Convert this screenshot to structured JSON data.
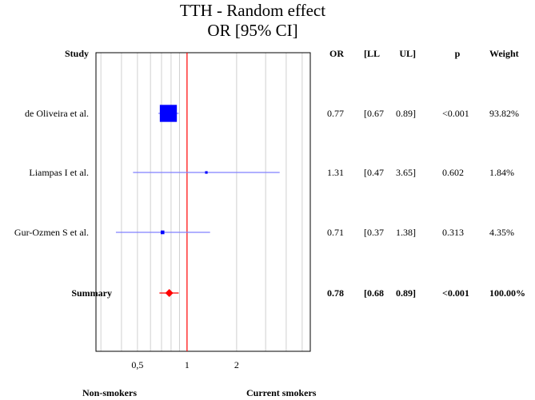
{
  "chart_data": {
    "type": "forest",
    "title": "TTH - Random effect",
    "subtitle": "OR [95% CI]",
    "columns": {
      "study": "Study",
      "or": "OR",
      "ll": "[LL",
      "ul": "UL]",
      "p": "p",
      "weight": "Weight"
    },
    "studies": [
      {
        "name": "de Oliveira et al.",
        "or": 0.77,
        "ll": 0.67,
        "ul": 0.89,
        "or_label": "0.77",
        "ll_label": "[0.67",
        "ul_label": "0.89]",
        "p_label": "<0.001",
        "weight_label": "93.82%",
        "weight": 93.82
      },
      {
        "name": "Liampas I et al.",
        "or": 1.31,
        "ll": 0.47,
        "ul": 3.65,
        "or_label": "1.31",
        "ll_label": "[0.47",
        "ul_label": "3.65]",
        "p_label": "0.602",
        "weight_label": "1.84%",
        "weight": 1.84
      },
      {
        "name": "Gur-Ozmen S et al.",
        "or": 0.71,
        "ll": 0.37,
        "ul": 1.38,
        "or_label": "0.71",
        "ll_label": "[0.37",
        "ul_label": "1.38]",
        "p_label": "0.313",
        "weight_label": "4.35%",
        "weight": 4.35
      }
    ],
    "summary": {
      "name": "Summary",
      "or": 0.78,
      "ll": 0.68,
      "ul": 0.89,
      "or_label": "0.78",
      "ll_label": "[0.68",
      "ul_label": "0.89]",
      "p_label": "<0.001",
      "weight_label": "100.00%"
    },
    "x_scale": "log",
    "x_ticks": [
      {
        "value": 0.5,
        "label": "0,5"
      },
      {
        "value": 1,
        "label": "1"
      },
      {
        "value": 2,
        "label": "2"
      }
    ],
    "x_minor_ticks": [
      0.3,
      0.4,
      0.6,
      0.7,
      0.8,
      0.9,
      3,
      4,
      5
    ],
    "xlim": [
      0.28,
      5.6
    ],
    "reference_value": 1,
    "grid": true,
    "left_label": "Non-smokers",
    "right_label": "Current smokers",
    "colors": {
      "study": "#0000ff",
      "ci_line": "#8080ff",
      "summary": "#ff0000",
      "reference": "#ff0000",
      "grid": "#d0d0d0"
    }
  }
}
